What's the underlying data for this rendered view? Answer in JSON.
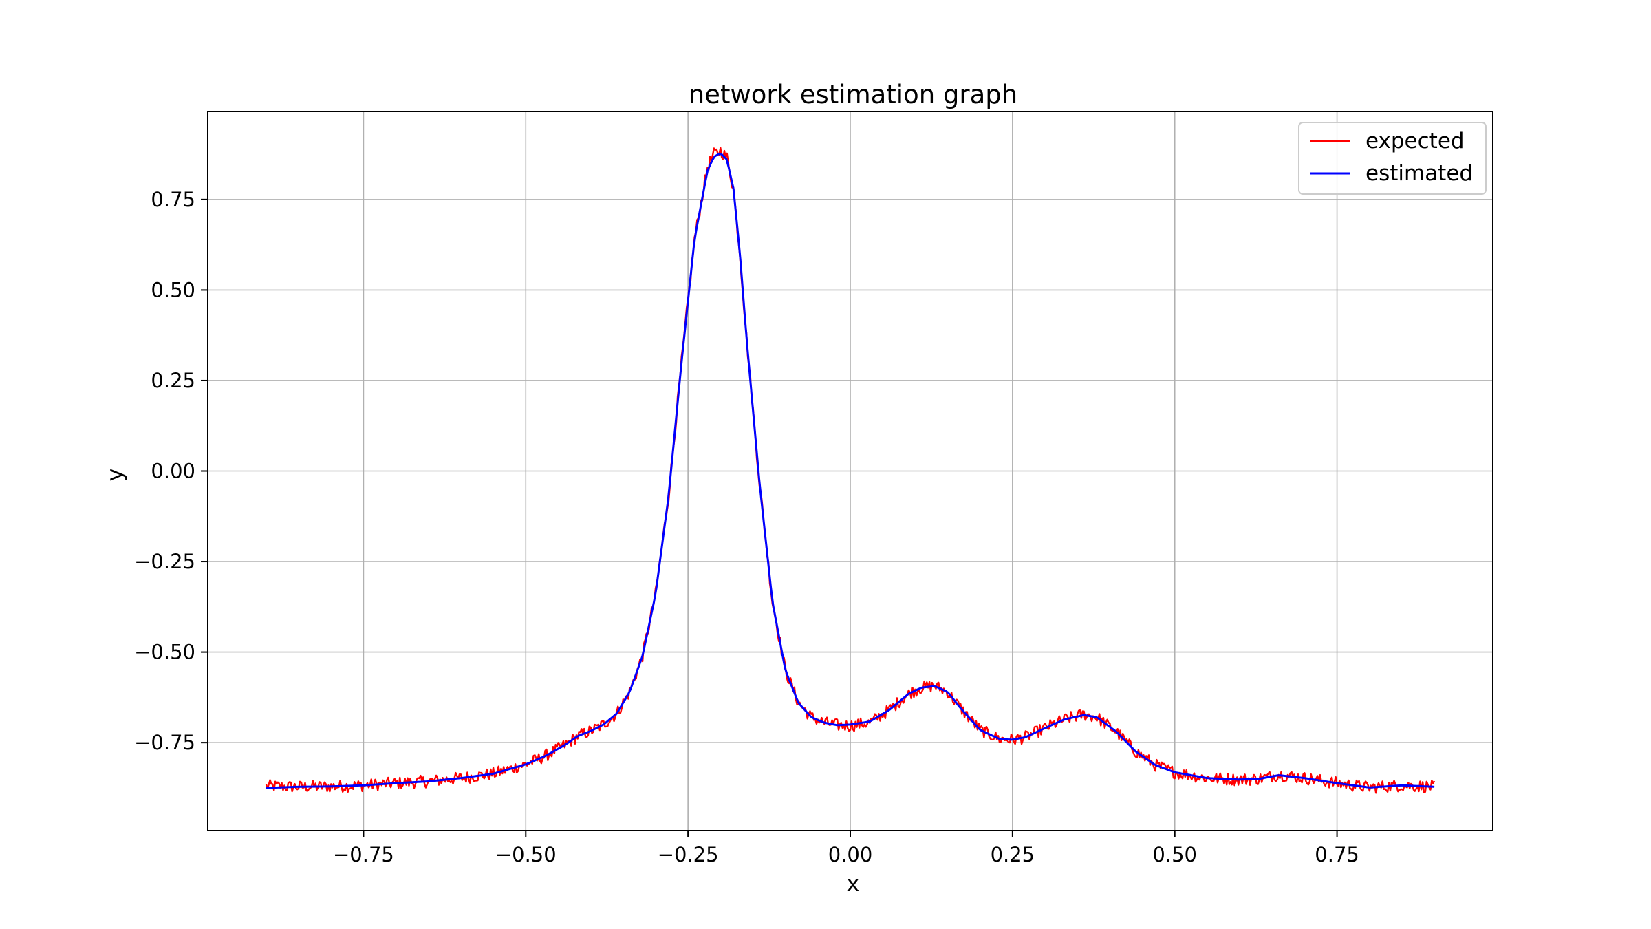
{
  "chart_data": {
    "type": "line",
    "title": "network estimation graph",
    "xlabel": "x",
    "ylabel": "y",
    "xlim": [
      -0.99,
      0.99
    ],
    "ylim": [
      -0.993,
      0.993
    ],
    "xticks": [
      -0.75,
      -0.5,
      -0.25,
      0.0,
      0.25,
      0.5,
      0.75
    ],
    "xtick_labels": [
      "−0.75",
      "−0.50",
      "−0.25",
      "0.00",
      "0.25",
      "0.50",
      "0.75"
    ],
    "yticks": [
      -0.75,
      -0.5,
      -0.25,
      0.0,
      0.25,
      0.5,
      0.75
    ],
    "ytick_labels": [
      "−0.75",
      "−0.50",
      "−0.25",
      "0.00",
      "0.25",
      "0.50",
      "0.75"
    ],
    "grid": true,
    "legend_position": "top-right",
    "series": [
      {
        "name": "expected",
        "color": "#ff0000",
        "noisy": true,
        "x": [
          -0.9,
          -0.85,
          -0.8,
          -0.75,
          -0.7,
          -0.65,
          -0.6,
          -0.55,
          -0.5,
          -0.47,
          -0.44,
          -0.42,
          -0.4,
          -0.38,
          -0.36,
          -0.34,
          -0.32,
          -0.3,
          -0.28,
          -0.26,
          -0.24,
          -0.22,
          -0.21,
          -0.2,
          -0.19,
          -0.18,
          -0.17,
          -0.16,
          -0.14,
          -0.12,
          -0.1,
          -0.08,
          -0.06,
          -0.04,
          -0.02,
          0.0,
          0.03,
          0.06,
          0.09,
          0.11,
          0.13,
          0.15,
          0.17,
          0.2,
          0.23,
          0.25,
          0.27,
          0.3,
          0.33,
          0.36,
          0.38,
          0.41,
          0.44,
          0.47,
          0.5,
          0.55,
          0.6,
          0.63,
          0.66,
          0.7,
          0.75,
          0.8,
          0.85,
          0.9
        ],
        "y": [
          -0.87,
          -0.872,
          -0.871,
          -0.868,
          -0.862,
          -0.857,
          -0.848,
          -0.836,
          -0.81,
          -0.787,
          -0.757,
          -0.732,
          -0.718,
          -0.7,
          -0.67,
          -0.61,
          -0.51,
          -0.34,
          -0.07,
          0.3,
          0.64,
          0.84,
          0.875,
          0.885,
          0.865,
          0.78,
          0.6,
          0.37,
          -0.03,
          -0.36,
          -0.55,
          -0.64,
          -0.68,
          -0.695,
          -0.702,
          -0.703,
          -0.695,
          -0.66,
          -0.615,
          -0.598,
          -0.593,
          -0.61,
          -0.655,
          -0.715,
          -0.74,
          -0.742,
          -0.735,
          -0.71,
          -0.686,
          -0.672,
          -0.68,
          -0.72,
          -0.775,
          -0.812,
          -0.832,
          -0.848,
          -0.852,
          -0.85,
          -0.838,
          -0.848,
          -0.862,
          -0.874,
          -0.868,
          -0.872
        ]
      },
      {
        "name": "estimated",
        "color": "#0000ff",
        "noisy": false,
        "x": [
          -0.9,
          -0.85,
          -0.8,
          -0.75,
          -0.7,
          -0.65,
          -0.6,
          -0.55,
          -0.5,
          -0.47,
          -0.44,
          -0.42,
          -0.4,
          -0.38,
          -0.36,
          -0.34,
          -0.32,
          -0.3,
          -0.28,
          -0.26,
          -0.24,
          -0.22,
          -0.21,
          -0.2,
          -0.19,
          -0.18,
          -0.17,
          -0.16,
          -0.14,
          -0.12,
          -0.1,
          -0.08,
          -0.06,
          -0.04,
          -0.02,
          0.0,
          0.03,
          0.06,
          0.09,
          0.11,
          0.13,
          0.15,
          0.17,
          0.2,
          0.23,
          0.25,
          0.27,
          0.3,
          0.33,
          0.36,
          0.38,
          0.41,
          0.44,
          0.47,
          0.5,
          0.55,
          0.6,
          0.63,
          0.66,
          0.7,
          0.75,
          0.8,
          0.85,
          0.9
        ],
        "y": [
          -0.875,
          -0.872,
          -0.871,
          -0.868,
          -0.862,
          -0.857,
          -0.848,
          -0.836,
          -0.81,
          -0.787,
          -0.757,
          -0.732,
          -0.718,
          -0.7,
          -0.67,
          -0.61,
          -0.51,
          -0.34,
          -0.07,
          0.3,
          0.64,
          0.83,
          0.868,
          0.878,
          0.86,
          0.78,
          0.6,
          0.37,
          -0.03,
          -0.36,
          -0.55,
          -0.64,
          -0.68,
          -0.695,
          -0.702,
          -0.7,
          -0.692,
          -0.66,
          -0.615,
          -0.598,
          -0.594,
          -0.61,
          -0.655,
          -0.715,
          -0.74,
          -0.742,
          -0.735,
          -0.71,
          -0.686,
          -0.674,
          -0.68,
          -0.72,
          -0.775,
          -0.812,
          -0.832,
          -0.848,
          -0.852,
          -0.85,
          -0.84,
          -0.848,
          -0.862,
          -0.874,
          -0.868,
          -0.872
        ]
      }
    ]
  }
}
